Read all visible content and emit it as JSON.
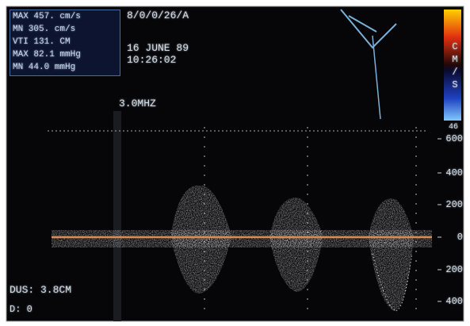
{
  "info_box": {
    "lines": [
      "MAX 457. cm/s",
      "MN 305. cm/s",
      "VTI 131. CM",
      "MAX 82.1 mmHg",
      "MN 44.0 mmHg"
    ]
  },
  "header": {
    "mode": "8/0/0/26/A",
    "date": "16 JUNE 89",
    "time": "10:26:02"
  },
  "frequency": "3.0MHZ",
  "velocity_scale": {
    "unit": "CM/S",
    "max": "46",
    "ticks": [
      "600",
      "400",
      "200",
      "0",
      "200",
      "400"
    ]
  },
  "depth": "DUS: 3.8CM",
  "footer": {
    "line": "D: 0"
  }
}
